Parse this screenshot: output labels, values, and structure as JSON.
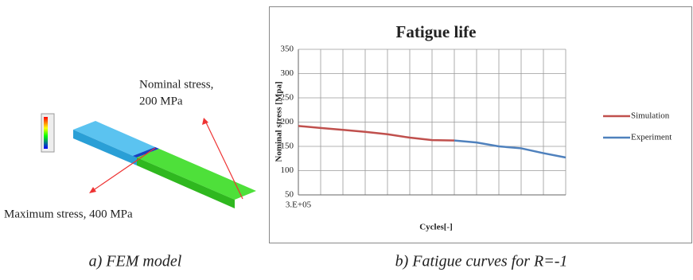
{
  "fem_panel": {
    "annotations": [
      "Nominal stress,",
      "200 MPa",
      "Maximum stress, 400 MPa"
    ],
    "caption": "a) FEM model"
  },
  "chart_caption": "b) Fatigue curves for R=-1",
  "chart_data": {
    "type": "line",
    "title": "Fatigue life",
    "y_label": "Nominal stress [Mpa]",
    "x_label": "Cycles[-]",
    "categories": [
      "3.E+05",
      null,
      null,
      null,
      null,
      null,
      null,
      null,
      null,
      null,
      null,
      null,
      null
    ],
    "series": [
      {
        "name": "Simulation",
        "color": "#c0504d",
        "values": [
          192,
          188,
          184,
          180,
          175,
          168,
          163,
          162,
          null,
          null,
          null,
          null,
          null
        ]
      },
      {
        "name": "Experiment",
        "color": "#4f81bd",
        "values": [
          null,
          null,
          null,
          null,
          null,
          null,
          null,
          162,
          158,
          150,
          146,
          136,
          127
        ]
      }
    ],
    "ylim": [
      50,
      350
    ],
    "yticks": [
      50,
      100,
      150,
      200,
      250,
      300,
      350
    ],
    "grid": true,
    "legend": "right"
  }
}
